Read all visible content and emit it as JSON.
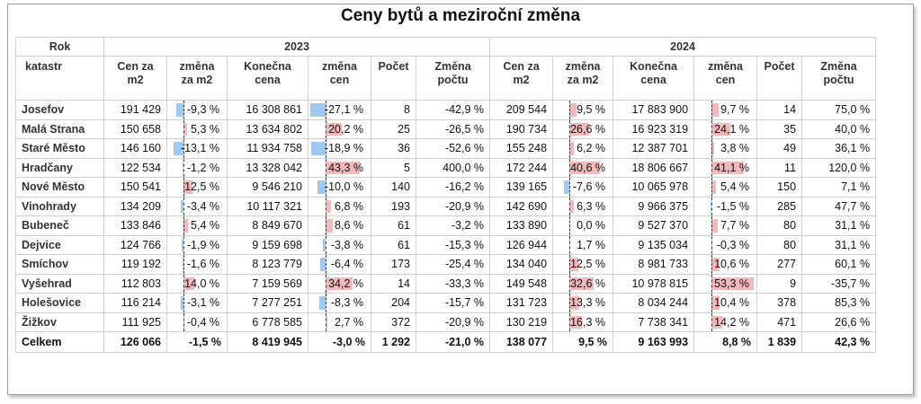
{
  "chart_data": {
    "type": "table",
    "title": "Ceny bytů a meziroční změna",
    "header": {
      "rok": "Rok",
      "katastr": "katastr",
      "years": [
        "2023",
        "2024"
      ],
      "columns": [
        "Cen za m2",
        "změna za m2",
        "Konečna cena",
        "změna cen",
        "Počet",
        "Změna počtu"
      ]
    },
    "rows": [
      {
        "name": "Josefov",
        "y2023": {
          "cena_m2": "191 429",
          "zmena_m2": "-9,3 %",
          "zmena_m2_v": -9.3,
          "konecna": "16 308 861",
          "zmena_cen": "-27,1 %",
          "zmena_cen_v": -27.1,
          "pocet": "8",
          "zmena_poctu": "-42,9 %"
        },
        "y2024": {
          "cena_m2": "209 544",
          "zmena_m2": "9,5 %",
          "zmena_m2_v": 9.5,
          "konecna": "17 883 900",
          "zmena_cen": "9,7 %",
          "zmena_cen_v": 9.7,
          "pocet": "14",
          "zmena_poctu": "75,0 %"
        }
      },
      {
        "name": "Malá Strana",
        "y2023": {
          "cena_m2": "150 658",
          "zmena_m2": "5,3 %",
          "zmena_m2_v": 5.3,
          "konecna": "13 634 802",
          "zmena_cen": "20,2 %",
          "zmena_cen_v": 20.2,
          "pocet": "25",
          "zmena_poctu": "-26,5 %"
        },
        "y2024": {
          "cena_m2": "190 734",
          "zmena_m2": "26,6 %",
          "zmena_m2_v": 26.6,
          "konecna": "16 923 319",
          "zmena_cen": "24,1 %",
          "zmena_cen_v": 24.1,
          "pocet": "35",
          "zmena_poctu": "40,0 %"
        }
      },
      {
        "name": "Staré Město",
        "y2023": {
          "cena_m2": "146 160",
          "zmena_m2": "-13,1 %",
          "zmena_m2_v": -13.1,
          "konecna": "11 934 758",
          "zmena_cen": "-18,9 %",
          "zmena_cen_v": -18.9,
          "pocet": "36",
          "zmena_poctu": "-52,6 %"
        },
        "y2024": {
          "cena_m2": "155 248",
          "zmena_m2": "6,2 %",
          "zmena_m2_v": 6.2,
          "konecna": "12 387 701",
          "zmena_cen": "3,8 %",
          "zmena_cen_v": 3.8,
          "pocet": "49",
          "zmena_poctu": "36,1 %"
        }
      },
      {
        "name": "Hradčany",
        "y2023": {
          "cena_m2": "122 534",
          "zmena_m2": "-1,2 %",
          "zmena_m2_v": -1.2,
          "konecna": "13 328 042",
          "zmena_cen": "43,3 %",
          "zmena_cen_v": 43.3,
          "pocet": "5",
          "zmena_poctu": "400,0 %"
        },
        "y2024": {
          "cena_m2": "172 244",
          "zmena_m2": "40,6 %",
          "zmena_m2_v": 40.6,
          "konecna": "18 806 667",
          "zmena_cen": "41,1 %",
          "zmena_cen_v": 41.1,
          "pocet": "11",
          "zmena_poctu": "120,0 %"
        }
      },
      {
        "name": "Nové Město",
        "y2023": {
          "cena_m2": "150 541",
          "zmena_m2": "12,5 %",
          "zmena_m2_v": 12.5,
          "konecna": "9 546 210",
          "zmena_cen": "-10,0 %",
          "zmena_cen_v": -10.0,
          "pocet": "140",
          "zmena_poctu": "-16,2 %"
        },
        "y2024": {
          "cena_m2": "139 165",
          "zmena_m2": "-7,6 %",
          "zmena_m2_v": -7.6,
          "konecna": "10 065 978",
          "zmena_cen": "5,4 %",
          "zmena_cen_v": 5.4,
          "pocet": "150",
          "zmena_poctu": "7,1 %"
        }
      },
      {
        "name": "Vinohrady",
        "y2023": {
          "cena_m2": "134 209",
          "zmena_m2": "-3,4 %",
          "zmena_m2_v": -3.4,
          "konecna": "10 117 321",
          "zmena_cen": "6,8 %",
          "zmena_cen_v": 6.8,
          "pocet": "193",
          "zmena_poctu": "-20,9 %"
        },
        "y2024": {
          "cena_m2": "142 690",
          "zmena_m2": "6,3 %",
          "zmena_m2_v": 6.3,
          "konecna": "9 966 375",
          "zmena_cen": "-1,5 %",
          "zmena_cen_v": -1.5,
          "pocet": "285",
          "zmena_poctu": "47,7 %"
        }
      },
      {
        "name": "Bubeneč",
        "y2023": {
          "cena_m2": "133 846",
          "zmena_m2": "5,4 %",
          "zmena_m2_v": 5.4,
          "konecna": "8 849 670",
          "zmena_cen": "8,6 %",
          "zmena_cen_v": 8.6,
          "pocet": "61",
          "zmena_poctu": "-3,2 %"
        },
        "y2024": {
          "cena_m2": "133 890",
          "zmena_m2": "0,0 %",
          "zmena_m2_v": 0.0,
          "konecna": "9 527 370",
          "zmena_cen": "7,7 %",
          "zmena_cen_v": 7.7,
          "pocet": "80",
          "zmena_poctu": "31,1 %"
        }
      },
      {
        "name": "Dejvice",
        "y2023": {
          "cena_m2": "124 766",
          "zmena_m2": "-1,9 %",
          "zmena_m2_v": -1.9,
          "konecna": "9 159 698",
          "zmena_cen": "-3,8 %",
          "zmena_cen_v": -3.8,
          "pocet": "61",
          "zmena_poctu": "-15,3 %"
        },
        "y2024": {
          "cena_m2": "126 944",
          "zmena_m2": "1,7 %",
          "zmena_m2_v": 1.7,
          "konecna": "9 135 034",
          "zmena_cen": "-0,3 %",
          "zmena_cen_v": -0.3,
          "pocet": "80",
          "zmena_poctu": "31,1 %"
        }
      },
      {
        "name": "Smíchov",
        "y2023": {
          "cena_m2": "119 192",
          "zmena_m2": "-1,6 %",
          "zmena_m2_v": -1.6,
          "konecna": "8 123 779",
          "zmena_cen": "-6,4 %",
          "zmena_cen_v": -6.4,
          "pocet": "173",
          "zmena_poctu": "-25,4 %"
        },
        "y2024": {
          "cena_m2": "134 040",
          "zmena_m2": "12,5 %",
          "zmena_m2_v": 12.5,
          "konecna": "8 981 733",
          "zmena_cen": "10,6 %",
          "zmena_cen_v": 10.6,
          "pocet": "277",
          "zmena_poctu": "60,1 %"
        }
      },
      {
        "name": "Vyšehrad",
        "y2023": {
          "cena_m2": "112 803",
          "zmena_m2": "14,0 %",
          "zmena_m2_v": 14.0,
          "konecna": "7 159 569",
          "zmena_cen": "34,2 %",
          "zmena_cen_v": 34.2,
          "pocet": "14",
          "zmena_poctu": "-33,3 %"
        },
        "y2024": {
          "cena_m2": "149 548",
          "zmena_m2": "32,6 %",
          "zmena_m2_v": 32.6,
          "konecna": "10 978 815",
          "zmena_cen": "53,3 %",
          "zmena_cen_v": 53.3,
          "pocet": "9",
          "zmena_poctu": "-35,7 %"
        }
      },
      {
        "name": "Holešovice",
        "y2023": {
          "cena_m2": "116 214",
          "zmena_m2": "-3,1 %",
          "zmena_m2_v": -3.1,
          "konecna": "7 277 251",
          "zmena_cen": "-8,3 %",
          "zmena_cen_v": -8.3,
          "pocet": "204",
          "zmena_poctu": "-15,7 %"
        },
        "y2024": {
          "cena_m2": "131 723",
          "zmena_m2": "13,3 %",
          "zmena_m2_v": 13.3,
          "konecna": "8 034 244",
          "zmena_cen": "10,4 %",
          "zmena_cen_v": 10.4,
          "pocet": "378",
          "zmena_poctu": "85,3 %"
        }
      },
      {
        "name": "Žižkov",
        "y2023": {
          "cena_m2": "111 925",
          "zmena_m2": "-0,4 %",
          "zmena_m2_v": -0.4,
          "konecna": "6 778 585",
          "zmena_cen": "2,7 %",
          "zmena_cen_v": 2.7,
          "pocet": "372",
          "zmena_poctu": "-20,9 %"
        },
        "y2024": {
          "cena_m2": "130 219",
          "zmena_m2": "16,3 %",
          "zmena_m2_v": 16.3,
          "konecna": "7 738 341",
          "zmena_cen": "14,2 %",
          "zmena_cen_v": 14.2,
          "pocet": "471",
          "zmena_poctu": "26,6 %"
        }
      }
    ],
    "total": {
      "name": "Celkem",
      "y2023": {
        "cena_m2": "126 066",
        "zmena_m2": "-1,5 %",
        "konecna": "8 419 945",
        "zmena_cen": "-3,0 %",
        "pocet": "1 292",
        "zmena_poctu": "-21,0 %"
      },
      "y2024": {
        "cena_m2": "138 077",
        "zmena_m2": "9,5 %",
        "konecna": "9 163 993",
        "zmena_cen": "8,8 %",
        "pocet": "1 839",
        "zmena_poctu": "42,3 %"
      }
    },
    "bar_colors": {
      "positive": "#f2b8ba",
      "negative": "#9ec9f5"
    },
    "bar_scale_max": 55
  }
}
